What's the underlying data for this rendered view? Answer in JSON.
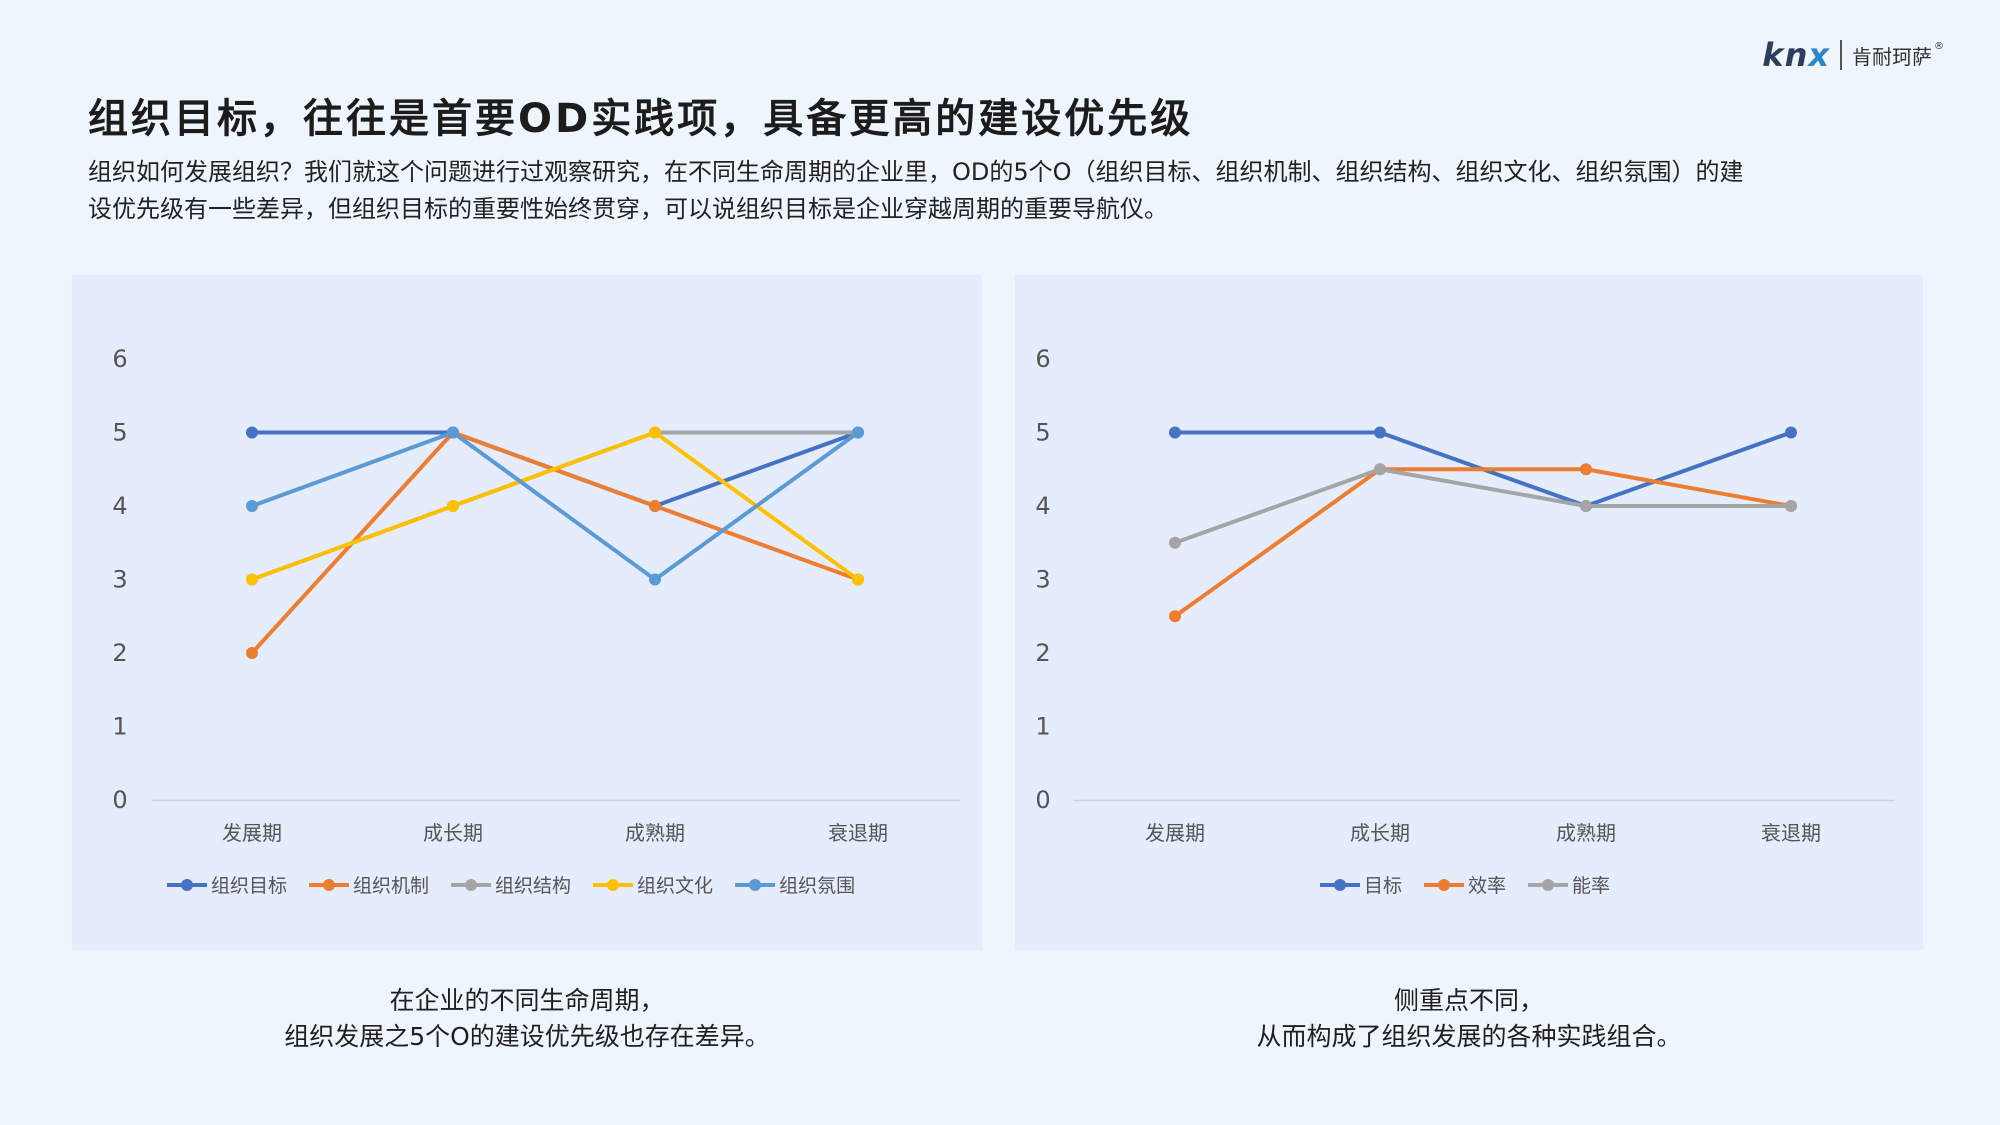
{
  "logo": {
    "brand": "knx",
    "brand_k": "kn",
    "brand_x": "x",
    "company": "肯耐珂萨",
    "reg": "®"
  },
  "title": "组织目标，往往是首要OD实践项，具备更高的建设优先级",
  "description": "组织如何发展组织？我们就这个问题进行过观察研究，在不同生命周期的企业里，OD的5个O（组织目标、组织机制、组织结构、组织文化、组织氛围）的建设优先级有一些差异，但组织目标的重要性始终贯穿，可以说组织目标是企业穿越周期的重要导航仪。",
  "captions": {
    "left_line1": "在企业的不同生命周期，",
    "left_line2": "组织发展之5个O的建设优先级也存在差异。",
    "right_line1": "侧重点不同，",
    "right_line2": "从而构成了组织发展的各种实践组合。"
  },
  "chart_data": [
    {
      "type": "line",
      "categories": [
        "发展期",
        "成长期",
        "成熟期",
        "衰退期"
      ],
      "ylim": [
        0,
        6
      ],
      "yticks": [
        0,
        1,
        2,
        3,
        4,
        5,
        6
      ],
      "series": [
        {
          "name": "组织目标",
          "color": "#4472c4",
          "values": [
            5,
            5,
            4,
            5
          ]
        },
        {
          "name": "组织机制",
          "color": "#ed7d31",
          "values": [
            2,
            5,
            4,
            3
          ]
        },
        {
          "name": "组织结构",
          "color": "#a5a5a5",
          "values": [
            3,
            4,
            5,
            5
          ]
        },
        {
          "name": "组织文化",
          "color": "#ffc000",
          "values": [
            3,
            4,
            5,
            3
          ]
        },
        {
          "name": "组织氛围",
          "color": "#5b9bd5",
          "values": [
            4,
            5,
            3,
            5
          ]
        }
      ],
      "legend": "bottom"
    },
    {
      "type": "line",
      "categories": [
        "发展期",
        "成长期",
        "成熟期",
        "衰退期"
      ],
      "ylim": [
        0,
        6
      ],
      "yticks": [
        0,
        1,
        2,
        3,
        4,
        5,
        6
      ],
      "series": [
        {
          "name": "目标",
          "color": "#4472c4",
          "values": [
            5,
            5,
            4,
            5
          ]
        },
        {
          "name": "效率",
          "color": "#ed7d31",
          "values": [
            2.5,
            4.5,
            4.5,
            4
          ]
        },
        {
          "name": "能率",
          "color": "#a5a5a5",
          "values": [
            3.5,
            4.5,
            4,
            4
          ]
        }
      ],
      "legend": "bottom"
    }
  ]
}
